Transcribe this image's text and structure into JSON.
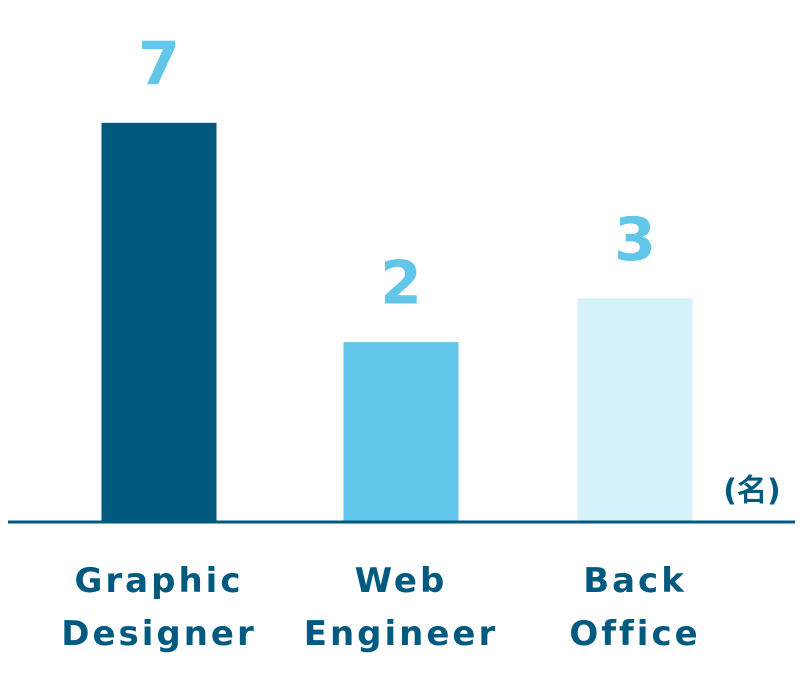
{
  "chart_data": {
    "type": "bar",
    "categories": [
      "Graphic Designer",
      "Web Engineer",
      "Back Office"
    ],
    "values": [
      7,
      2,
      3
    ],
    "colors": [
      "#005a80",
      "#62c5ea",
      "#d5f1fb"
    ],
    "unit": "(名)",
    "ylim": [
      -2.1,
      9.8
    ]
  }
}
